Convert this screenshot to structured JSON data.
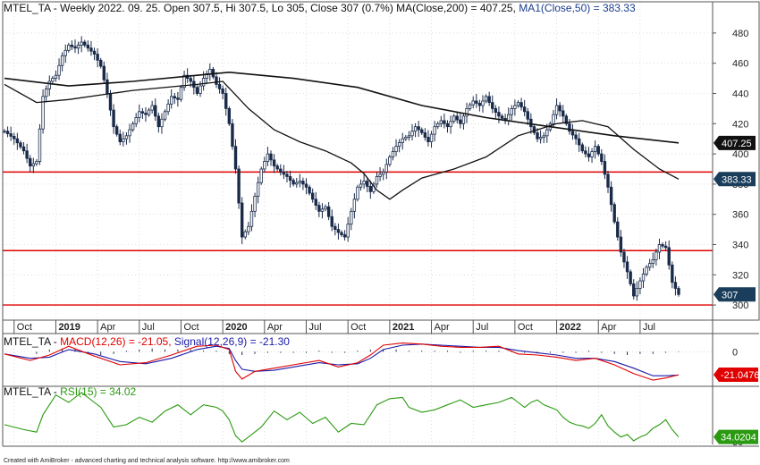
{
  "header": {
    "symbol": "MTEL_TA",
    "info": " - Weekly 2022. 09. 25. Open 307.5, Hi 307.5, Lo 305, Close 307 (0.7%) MA(Close,200) = 407.25, ",
    "ma50": "MA1(Close,50) = 383.33"
  },
  "macd_header": {
    "symbol": "MTEL_TA",
    "macd": "MACD(12,26) = -21.05,",
    "signal": "Signal(12,26,9) = -21.30"
  },
  "rsi_header": {
    "symbol": "MTEL_TA",
    "rsi": "RSI(15) = 34.02"
  },
  "footer": "Created with AmiBroker - advanced charting and technical analysis software. http://www.amibroker.com",
  "colors": {
    "candle": "#1a2b4a",
    "ma": "#111111",
    "hline": "#e00000",
    "macd": "#e00000",
    "signal": "#1a1aa8",
    "rsi": "#2a9a10",
    "grid": "#c8c8c8"
  },
  "chart_data": [
    {
      "type": "line",
      "panel": "price",
      "ylim": [
        290,
        490
      ],
      "y_ticks": [
        300,
        320,
        340,
        360,
        380,
        400,
        420,
        440,
        460,
        480
      ],
      "x_labels": [
        "Oct",
        "2019",
        "Apr",
        "Jul",
        "Oct",
        "2020",
        "Apr",
        "Jul",
        "Oct",
        "2021",
        "Apr",
        "Jul",
        "Oct",
        "2022",
        "Apr",
        "Jul"
      ],
      "x_label_weeks": [
        3,
        16,
        29,
        42,
        55,
        68,
        81,
        94,
        107,
        120,
        133,
        146,
        159,
        172,
        185,
        198
      ],
      "year_labels": [
        "2019",
        "2020",
        "2021",
        "2022"
      ],
      "price_points": [
        [
          0,
          415
        ],
        [
          3,
          410
        ],
        [
          6,
          402
        ],
        [
          8,
          392
        ],
        [
          10,
          395
        ],
        [
          12,
          438
        ],
        [
          14,
          448
        ],
        [
          16,
          452
        ],
        [
          18,
          465
        ],
        [
          20,
          472
        ],
        [
          22,
          470
        ],
        [
          24,
          474
        ],
        [
          26,
          470
        ],
        [
          28,
          466
        ],
        [
          30,
          458
        ],
        [
          32,
          440
        ],
        [
          34,
          418
        ],
        [
          36,
          408
        ],
        [
          38,
          412
        ],
        [
          40,
          420
        ],
        [
          42,
          428
        ],
        [
          44,
          426
        ],
        [
          46,
          432
        ],
        [
          48,
          418
        ],
        [
          50,
          428
        ],
        [
          52,
          438
        ],
        [
          54,
          436
        ],
        [
          56,
          452
        ],
        [
          58,
          448
        ],
        [
          60,
          440
        ],
        [
          62,
          450
        ],
        [
          64,
          456
        ],
        [
          66,
          446
        ],
        [
          68,
          440
        ],
        [
          70,
          420
        ],
        [
          72,
          390
        ],
        [
          74,
          345
        ],
        [
          76,
          352
        ],
        [
          78,
          372
        ],
        [
          80,
          390
        ],
        [
          82,
          400
        ],
        [
          84,
          392
        ],
        [
          86,
          388
        ],
        [
          88,
          385
        ],
        [
          90,
          380
        ],
        [
          92,
          382
        ],
        [
          94,
          378
        ],
        [
          96,
          370
        ],
        [
          98,
          362
        ],
        [
          100,
          365
        ],
        [
          102,
          352
        ],
        [
          104,
          348
        ],
        [
          106,
          345
        ],
        [
          108,
          362
        ],
        [
          110,
          378
        ],
        [
          112,
          382
        ],
        [
          114,
          375
        ],
        [
          116,
          385
        ],
        [
          118,
          388
        ],
        [
          120,
          398
        ],
        [
          122,
          405
        ],
        [
          124,
          410
        ],
        [
          126,
          412
        ],
        [
          128,
          418
        ],
        [
          130,
          414
        ],
        [
          132,
          408
        ],
        [
          134,
          418
        ],
        [
          136,
          422
        ],
        [
          138,
          418
        ],
        [
          140,
          425
        ],
        [
          142,
          420
        ],
        [
          144,
          430
        ],
        [
          146,
          435
        ],
        [
          148,
          432
        ],
        [
          150,
          438
        ],
        [
          152,
          430
        ],
        [
          154,
          425
        ],
        [
          156,
          422
        ],
        [
          158,
          430
        ],
        [
          160,
          434
        ],
        [
          162,
          428
        ],
        [
          164,
          418
        ],
        [
          166,
          410
        ],
        [
          168,
          412
        ],
        [
          170,
          420
        ],
        [
          172,
          432
        ],
        [
          174,
          425
        ],
        [
          176,
          415
        ],
        [
          178,
          410
        ],
        [
          180,
          402
        ],
        [
          182,
          398
        ],
        [
          184,
          405
        ],
        [
          186,
          395
        ],
        [
          188,
          378
        ],
        [
          190,
          355
        ],
        [
          192,
          335
        ],
        [
          194,
          322
        ],
        [
          196,
          306
        ],
        [
          198,
          316
        ],
        [
          200,
          325
        ],
        [
          202,
          330
        ],
        [
          204,
          340
        ],
        [
          206,
          338
        ],
        [
          208,
          315
        ],
        [
          210,
          307
        ]
      ],
      "ma200_points": [
        [
          0,
          450
        ],
        [
          20,
          445
        ],
        [
          40,
          448
        ],
        [
          60,
          452
        ],
        [
          70,
          454
        ],
        [
          90,
          450
        ],
        [
          110,
          444
        ],
        [
          130,
          432
        ],
        [
          150,
          424
        ],
        [
          170,
          418
        ],
        [
          190,
          412
        ],
        [
          210,
          407.25
        ]
      ],
      "ma50_points": [
        [
          0,
          446
        ],
        [
          10,
          434
        ],
        [
          20,
          436
        ],
        [
          40,
          442
        ],
        [
          60,
          446
        ],
        [
          68,
          448
        ],
        [
          76,
          430
        ],
        [
          84,
          416
        ],
        [
          92,
          408
        ],
        [
          100,
          402
        ],
        [
          108,
          394
        ],
        [
          112,
          387
        ],
        [
          116,
          376
        ],
        [
          120,
          370
        ],
        [
          124,
          376
        ],
        [
          130,
          384
        ],
        [
          140,
          390
        ],
        [
          150,
          398
        ],
        [
          160,
          412
        ],
        [
          166,
          416
        ],
        [
          172,
          420
        ],
        [
          180,
          422
        ],
        [
          188,
          418
        ],
        [
          196,
          403
        ],
        [
          204,
          390
        ],
        [
          210,
          383.33
        ]
      ],
      "horizontal_levels": [
        388,
        336,
        300
      ],
      "last_close": 307,
      "ma200_last": 407.25,
      "ma50_last": 383.33
    },
    {
      "type": "line",
      "panel": "macd",
      "ylim": [
        -30,
        15
      ],
      "y_ticks": [
        0
      ],
      "x": [
        0,
        8,
        14,
        20,
        28,
        36,
        44,
        52,
        60,
        66,
        70,
        72,
        74,
        78,
        84,
        90,
        98,
        104,
        110,
        114,
        118,
        124,
        130,
        136,
        142,
        148,
        154,
        160,
        166,
        172,
        178,
        184,
        190,
        196,
        202,
        206,
        210
      ],
      "macd": [
        -2,
        -8,
        -3,
        5,
        -4,
        -12,
        -10,
        -3,
        5,
        6,
        2,
        -18,
        -25,
        -18,
        -15,
        -12,
        -8,
        -14,
        -10,
        -3,
        6,
        8,
        7,
        5,
        4,
        4,
        5,
        -2,
        -3,
        -5,
        -8,
        -6,
        -12,
        -20,
        -26,
        -24,
        -21.05
      ],
      "signal": [
        -2,
        -6,
        -5,
        2,
        -2,
        -9,
        -11,
        -6,
        2,
        5,
        3,
        -8,
        -16,
        -18,
        -17,
        -14,
        -10,
        -12,
        -11,
        -6,
        2,
        6,
        7,
        6,
        5,
        4,
        4,
        1,
        -1,
        -3,
        -6,
        -6,
        -9,
        -15,
        -22,
        -22,
        -21.3
      ],
      "histogram_weeks": [
        10,
        14,
        18,
        22,
        26,
        30,
        34,
        38,
        42,
        46,
        50,
        54,
        58,
        62,
        66,
        70,
        74,
        78,
        82,
        86,
        90,
        94,
        98,
        102,
        106,
        110,
        114,
        118,
        122,
        126,
        130,
        134,
        138,
        142,
        146,
        150,
        154,
        158,
        162,
        166,
        170,
        174,
        178,
        182,
        186,
        190,
        194,
        198,
        202,
        206,
        210
      ],
      "histogram": [
        -2,
        2,
        3,
        3,
        -2,
        -3,
        -2,
        1,
        2,
        3,
        2,
        2,
        2,
        1,
        1,
        -2,
        -3,
        -2,
        -1,
        -1,
        -1,
        -1,
        1,
        -1,
        -1,
        1,
        2,
        2,
        2,
        1,
        1,
        1,
        1,
        -1,
        1,
        1,
        1,
        1,
        -1,
        -1,
        -1,
        -1,
        -1,
        1,
        -1,
        -2,
        -3,
        -2,
        -2,
        -1,
        0.5
      ],
      "last_macd": -21.05,
      "last_signal": -21.3,
      "last_label": "-21.0476"
    },
    {
      "type": "line",
      "panel": "rsi",
      "ylim": [
        28,
        75
      ],
      "y_ticks": [
        30
      ],
      "x": [
        0,
        3,
        6,
        10,
        12,
        16,
        20,
        24,
        28,
        30,
        34,
        38,
        42,
        46,
        50,
        54,
        58,
        62,
        66,
        68,
        70,
        72,
        74,
        76,
        80,
        84,
        88,
        92,
        96,
        100,
        104,
        108,
        112,
        116,
        120,
        124,
        126,
        130,
        134,
        138,
        142,
        146,
        150,
        154,
        158,
        160,
        162,
        164,
        166,
        168,
        172,
        174,
        176,
        178,
        180,
        182,
        184,
        186,
        188,
        190,
        192,
        194,
        196,
        198,
        200,
        202,
        204,
        206,
        208,
        210
      ],
      "rsi": [
        44,
        42,
        40,
        38,
        52,
        68,
        62,
        70,
        62,
        58,
        42,
        44,
        50,
        46,
        55,
        60,
        52,
        60,
        58,
        55,
        48,
        35,
        30,
        34,
        42,
        55,
        48,
        54,
        45,
        50,
        38,
        45,
        44,
        60,
        65,
        66,
        58,
        54,
        56,
        60,
        64,
        58,
        60,
        62,
        66,
        62,
        58,
        62,
        64,
        60,
        56,
        50,
        46,
        44,
        43,
        41,
        45,
        52,
        43,
        38,
        34,
        36,
        31,
        34,
        36,
        41,
        44,
        48,
        40,
        34.02
      ],
      "last_label": "34.0204"
    }
  ]
}
